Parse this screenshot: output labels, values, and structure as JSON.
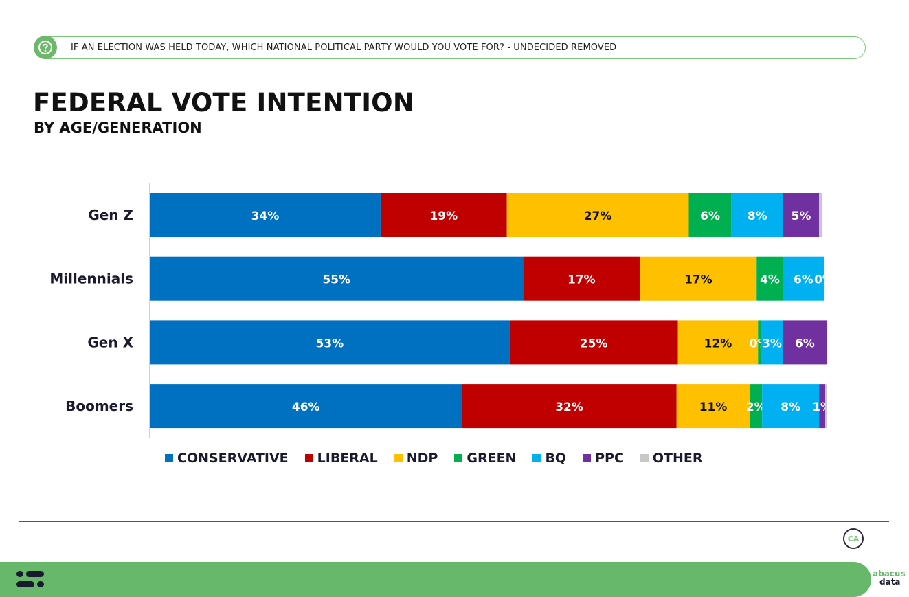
{
  "question": "IF AN ELECTION WAS HELD TODAY, WHICH NATIONAL POLITICAL PARTY WOULD YOU VOTE FOR? - UNDECIDED REMOVED",
  "icons": {
    "question": "question-bubble-icon",
    "badge": "ca-badge-icon",
    "footer": "abacus-mark-icon"
  },
  "badge_text": "CA",
  "brand": {
    "line1": "abacus",
    "line2": "data"
  },
  "colors": {
    "conservative": "#0070c0",
    "liberal": "#c00000",
    "ndp": "#ffc000",
    "green": "#00b050",
    "bq": "#00b0f0",
    "ppc": "#7030a0",
    "other": "#c8c8c8",
    "accent": "#67b86a"
  },
  "chart_data": {
    "type": "bar",
    "orientation": "horizontal",
    "stacked": true,
    "title": "FEDERAL VOTE INTENTION",
    "subtitle": "BY AGE/GENERATION",
    "categories": [
      "Gen Z",
      "Millennials",
      "Gen X",
      "Boomers"
    ],
    "series": [
      {
        "name": "CONSERVATIVE",
        "color": "#0070c0",
        "values": [
          34,
          55,
          53,
          46
        ],
        "labels": [
          "34%",
          "55%",
          "53%",
          "46%"
        ]
      },
      {
        "name": "LIBERAL",
        "color": "#c00000",
        "values": [
          18.6,
          17.2,
          24.8,
          31.6
        ],
        "labels": [
          "19%",
          "17%",
          "25%",
          "32%"
        ]
      },
      {
        "name": "NDP",
        "color": "#ffc000",
        "values": [
          26.8,
          17.2,
          11.8,
          10.8
        ],
        "labels": [
          "27%",
          "17%",
          "12%",
          "11%"
        ]
      },
      {
        "name": "GREEN",
        "color": "#00b050",
        "values": [
          6.3,
          3.9,
          0.4,
          1.8
        ],
        "labels": [
          "6%",
          "4%",
          "0%",
          "2%"
        ]
      },
      {
        "name": "BQ",
        "color": "#00b0f0",
        "values": [
          7.6,
          6.0,
          3.3,
          8.4
        ],
        "labels": [
          "8%",
          "6%",
          "3%",
          "8%"
        ]
      },
      {
        "name": "PPC",
        "color": "#7030a0",
        "values": [
          5.3,
          0.1,
          6.4,
          0.9
        ],
        "labels": [
          "5%",
          "0%",
          "6%",
          "1%"
        ]
      },
      {
        "name": "OTHER",
        "color": "#c8c8c8",
        "values": [
          0.5,
          0.0,
          0.1,
          0.3
        ],
        "labels": [
          "",
          "",
          "",
          ""
        ]
      }
    ],
    "xlim": [
      0,
      100
    ],
    "legend_position": "bottom",
    "grid": false
  }
}
